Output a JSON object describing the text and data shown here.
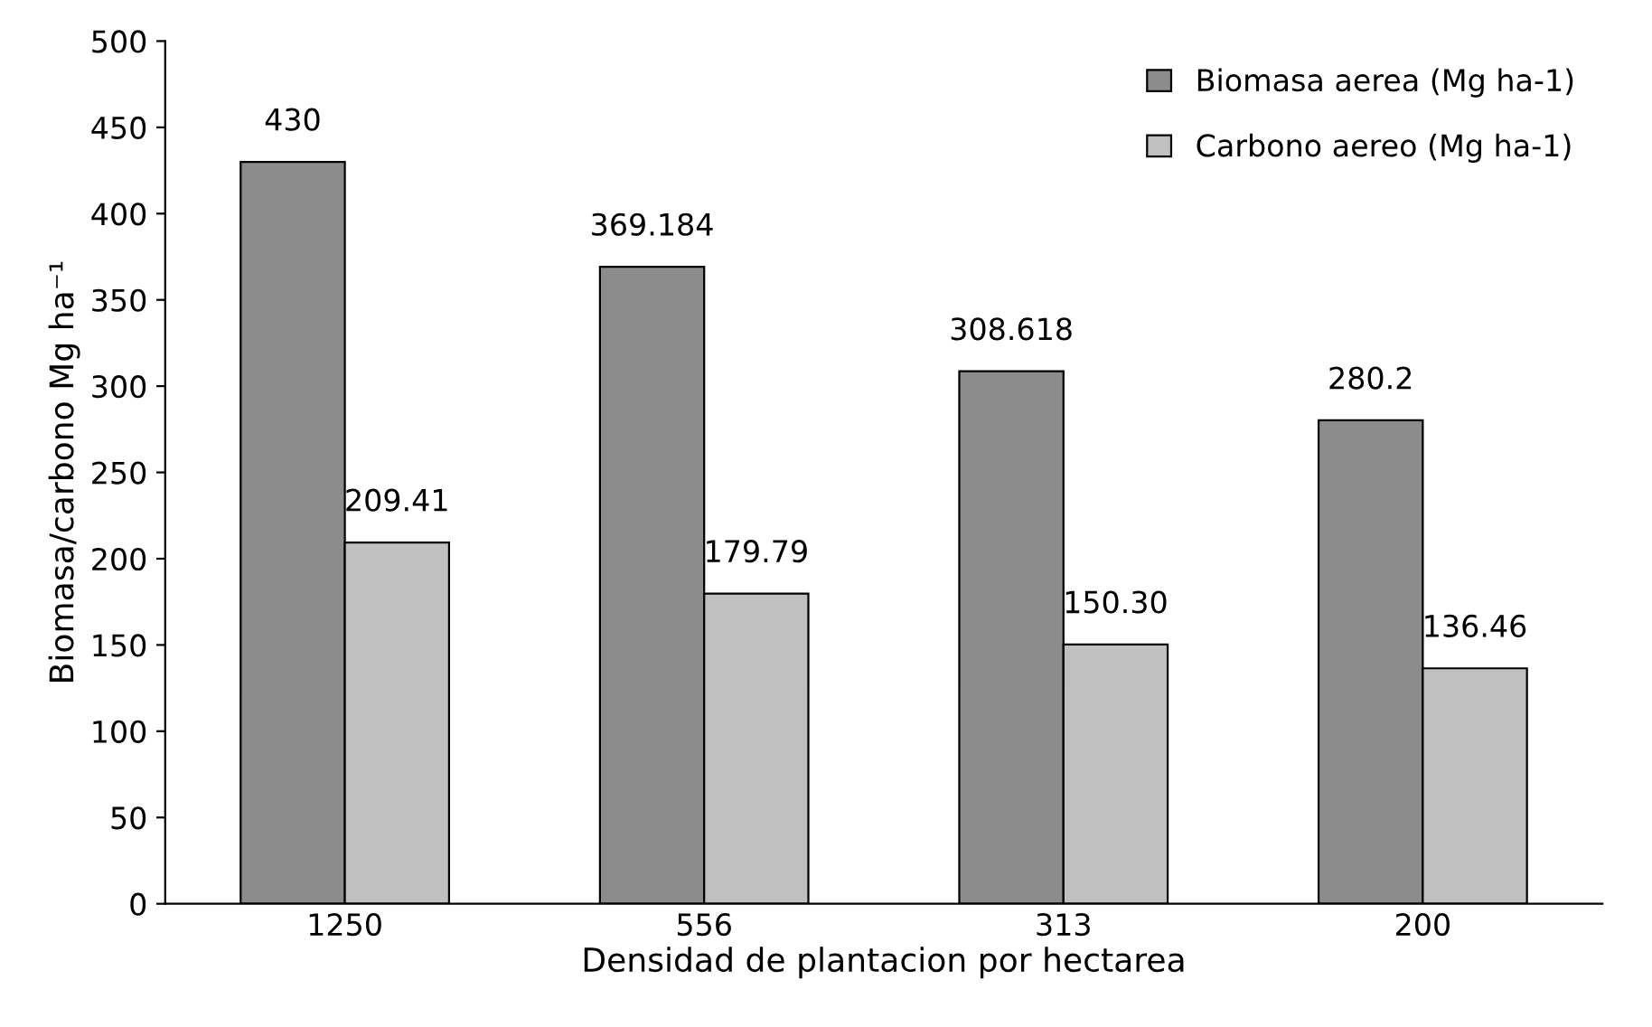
{
  "chart_data": {
    "type": "bar",
    "xlabel": "Densidad de plantacion por hectarea",
    "ylabel": "Biomasa/carbono Mg ha⁻¹",
    "categories": [
      "1250",
      "556",
      "313",
      "200"
    ],
    "series": [
      {
        "name": "Biomasa aerea (Mg ha-1)",
        "color": "#8c8c8c",
        "values": [
          430,
          369.184,
          308.618,
          280.2
        ],
        "value_labels": [
          "430",
          "369.184",
          "308.618",
          "280.2"
        ]
      },
      {
        "name": "Carbono aereo (Mg ha-1)",
        "color": "#c0c0c0",
        "values": [
          209.41,
          179.79,
          150.3,
          136.46
        ],
        "value_labels": [
          "209.41",
          "179.79",
          "150.30",
          "136.46"
        ]
      }
    ],
    "ylim": [
      0,
      500
    ],
    "yticks": [
      0,
      50,
      100,
      150,
      200,
      250,
      300,
      350,
      400,
      450,
      500
    ],
    "grid": false,
    "legend": "top right"
  }
}
